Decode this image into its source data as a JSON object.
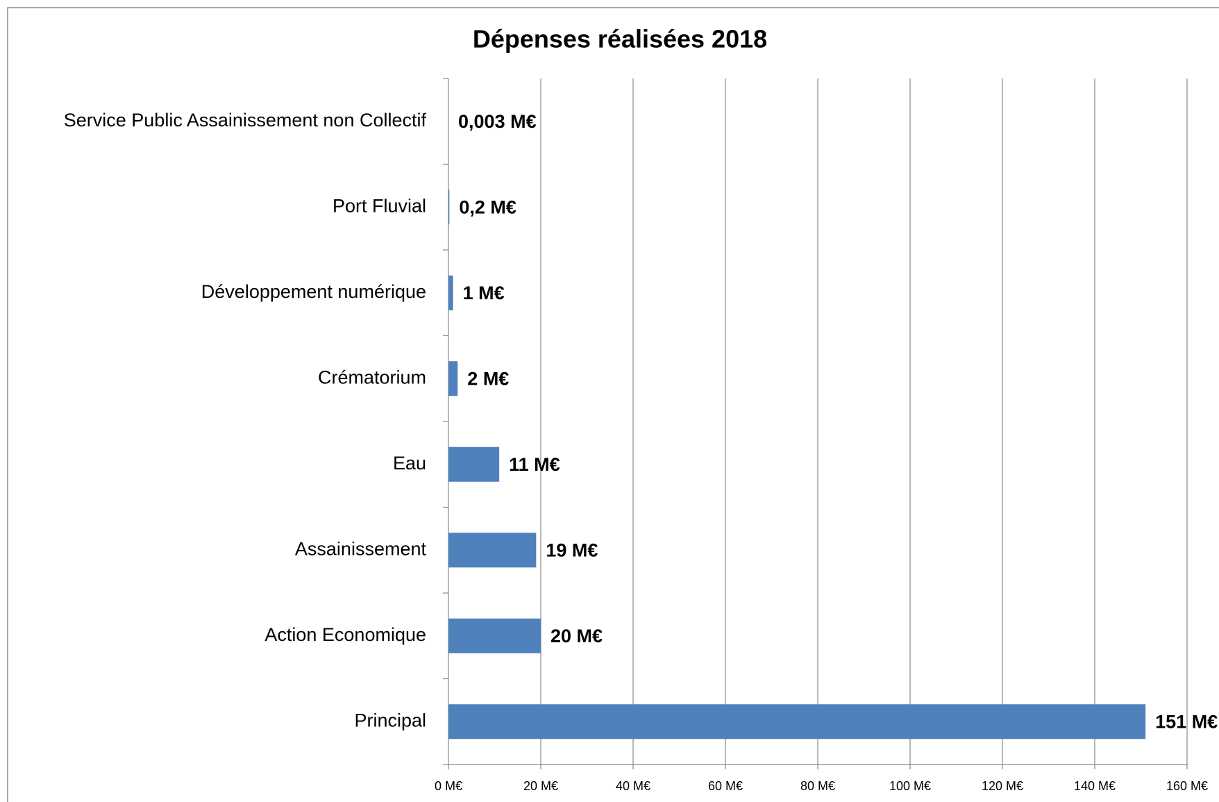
{
  "chart_data": {
    "type": "bar",
    "orientation": "horizontal",
    "title": "Dépenses réalisées 2018",
    "categories": [
      "Service Public Assainissement non Collectif",
      "Port Fluvial",
      "Développement numérique",
      "Crématorium",
      "Eau",
      "Assainissement",
      "Action Economique",
      "Principal"
    ],
    "values": [
      0.003,
      0.2,
      1,
      2,
      11,
      19,
      20,
      151
    ],
    "value_labels": [
      "0,003 M€",
      "0,2 M€",
      "1 M€",
      "2 M€",
      "11 M€",
      "19 M€",
      "20 M€",
      "151 M€"
    ],
    "color": "#4f81bd",
    "xlim": [
      0,
      160
    ],
    "xticks": [
      {
        "value": 0,
        "label": "0 M€"
      },
      {
        "value": 20,
        "label": "20 M€"
      },
      {
        "value": 40,
        "label": "40 M€"
      },
      {
        "value": 60,
        "label": "60 M€"
      },
      {
        "value": 80,
        "label": "80 M€"
      },
      {
        "value": 100,
        "label": "100 M€"
      },
      {
        "value": 120,
        "label": "120 M€"
      },
      {
        "value": 140,
        "label": "140 M€"
      },
      {
        "value": 160,
        "label": "160 M€"
      }
    ],
    "grid": true
  }
}
